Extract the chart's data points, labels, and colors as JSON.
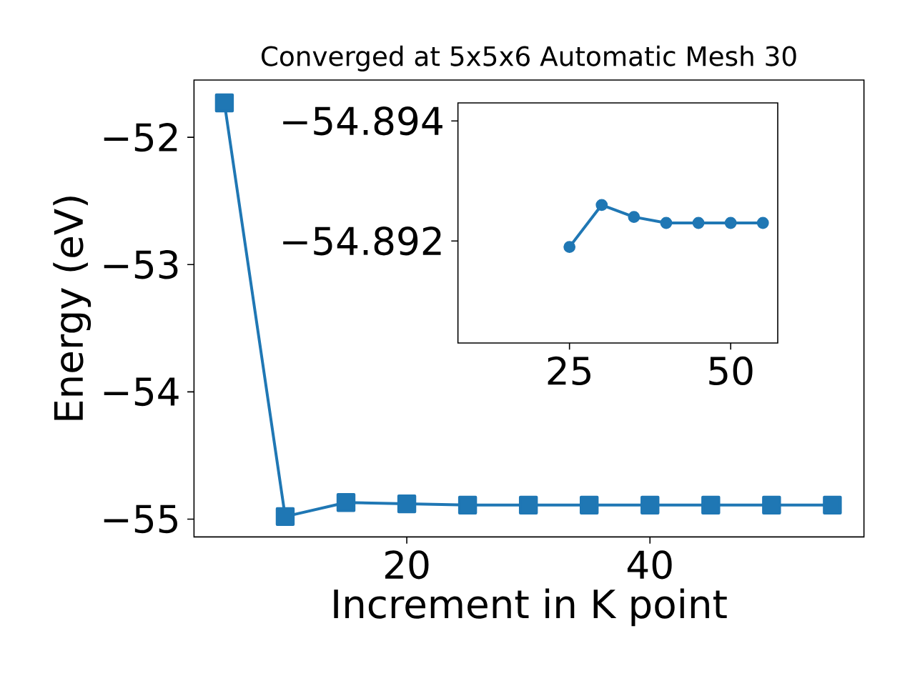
{
  "chart_data": [
    {
      "type": "line",
      "title": "Converged at 5x5x6 Automatic Mesh 30",
      "xlabel": "Increment in K point",
      "ylabel": "Energy (eV)",
      "x": [
        5,
        10,
        15,
        20,
        25,
        30,
        35,
        40,
        45,
        50,
        55
      ],
      "series": [
        {
          "color": "#1f77b4",
          "values": [
            -51.73,
            -54.98,
            -54.87,
            -54.88,
            -54.89,
            -54.89,
            -54.89,
            -54.89,
            -54.89,
            -54.89,
            -54.89
          ]
        }
      ],
      "marker": "square",
      "line_style": "solid",
      "grid": false,
      "xlim": [
        2.5,
        57.6
      ],
      "ylim": [
        -55.14,
        -51.55
      ],
      "xticks": [
        20,
        40
      ],
      "yticks": [
        {
          "value": -55,
          "label": "−55"
        },
        {
          "value": -54,
          "label": "−54"
        },
        {
          "value": -53,
          "label": "−53"
        },
        {
          "value": -52,
          "label": "−52"
        }
      ]
    },
    {
      "type": "line",
      "x": [
        25,
        30,
        35,
        40,
        45,
        50,
        55
      ],
      "series": [
        {
          "color": "#1f77b4",
          "values": [
            -54.8919,
            -54.8926,
            -54.8924,
            -54.8923,
            -54.8923,
            -54.8923,
            -54.8923
          ]
        }
      ],
      "marker": "circle",
      "line_style": "solid",
      "grid": false,
      "xlim": [
        7.7,
        57.3
      ],
      "ylim": [
        -54.8903,
        -54.8943
      ],
      "xticks": [
        25,
        50
      ],
      "yticks": [
        {
          "value": -54.894,
          "label": "−54.894"
        },
        {
          "value": -54.892,
          "label": "−54.892"
        }
      ]
    }
  ]
}
